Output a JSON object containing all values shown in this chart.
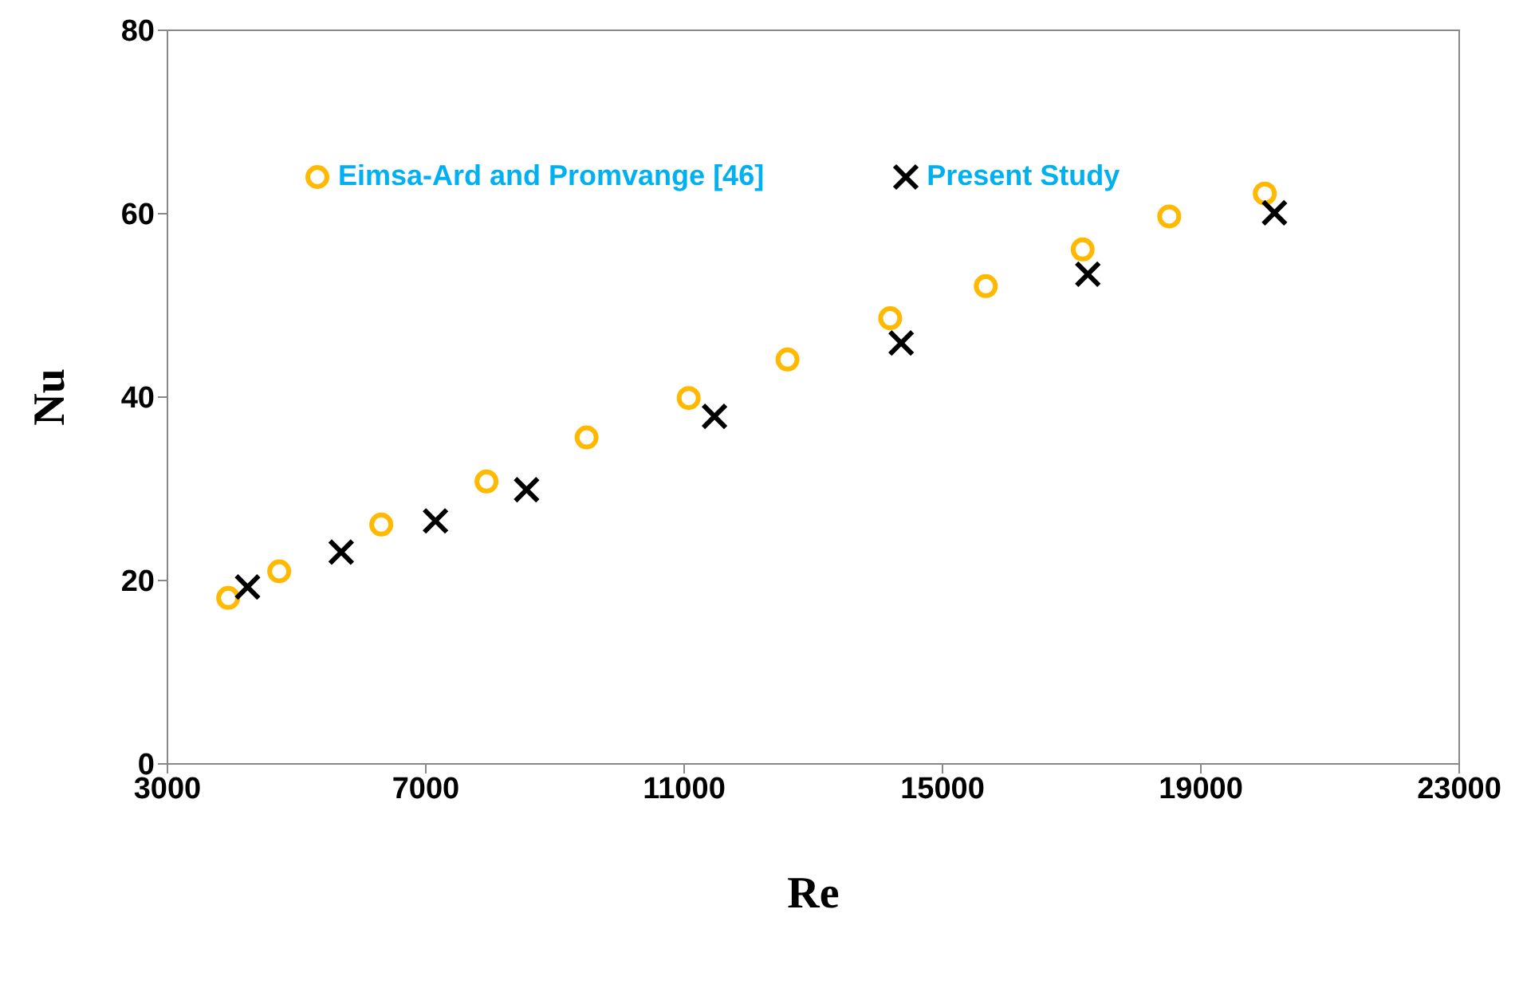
{
  "chart_data": {
    "type": "scatter",
    "xlabel": "Re",
    "ylabel": "Nu",
    "xlim": [
      3000,
      23000
    ],
    "xticks": [
      3000,
      7000,
      11000,
      15000,
      19000,
      23000
    ],
    "ylim": [
      0,
      80
    ],
    "yticks": [
      0,
      20,
      40,
      60,
      80
    ],
    "grid": false,
    "legend": "top",
    "series": [
      {
        "name": "Eimsa-Ard and Promvange [46]",
        "color": "#ffb900",
        "marker": "circle",
        "x": [
          3940,
          4730,
          6310,
          7940,
          9490,
          11070,
          12600,
          14190,
          15670,
          17170,
          18510,
          19990
        ],
        "values": [
          18.1,
          21.0,
          26.1,
          30.8,
          35.6,
          39.9,
          44.1,
          48.6,
          52.1,
          56.1,
          59.7,
          62.2
        ]
      },
      {
        "name": "Present Study",
        "color": "#000000",
        "marker": "cross",
        "x": [
          4240,
          5690,
          7150,
          8560,
          11470,
          14360,
          17250,
          20140
        ],
        "values": [
          19.3,
          23.1,
          26.5,
          29.9,
          37.9,
          45.9,
          53.4,
          60.1
        ]
      }
    ]
  }
}
